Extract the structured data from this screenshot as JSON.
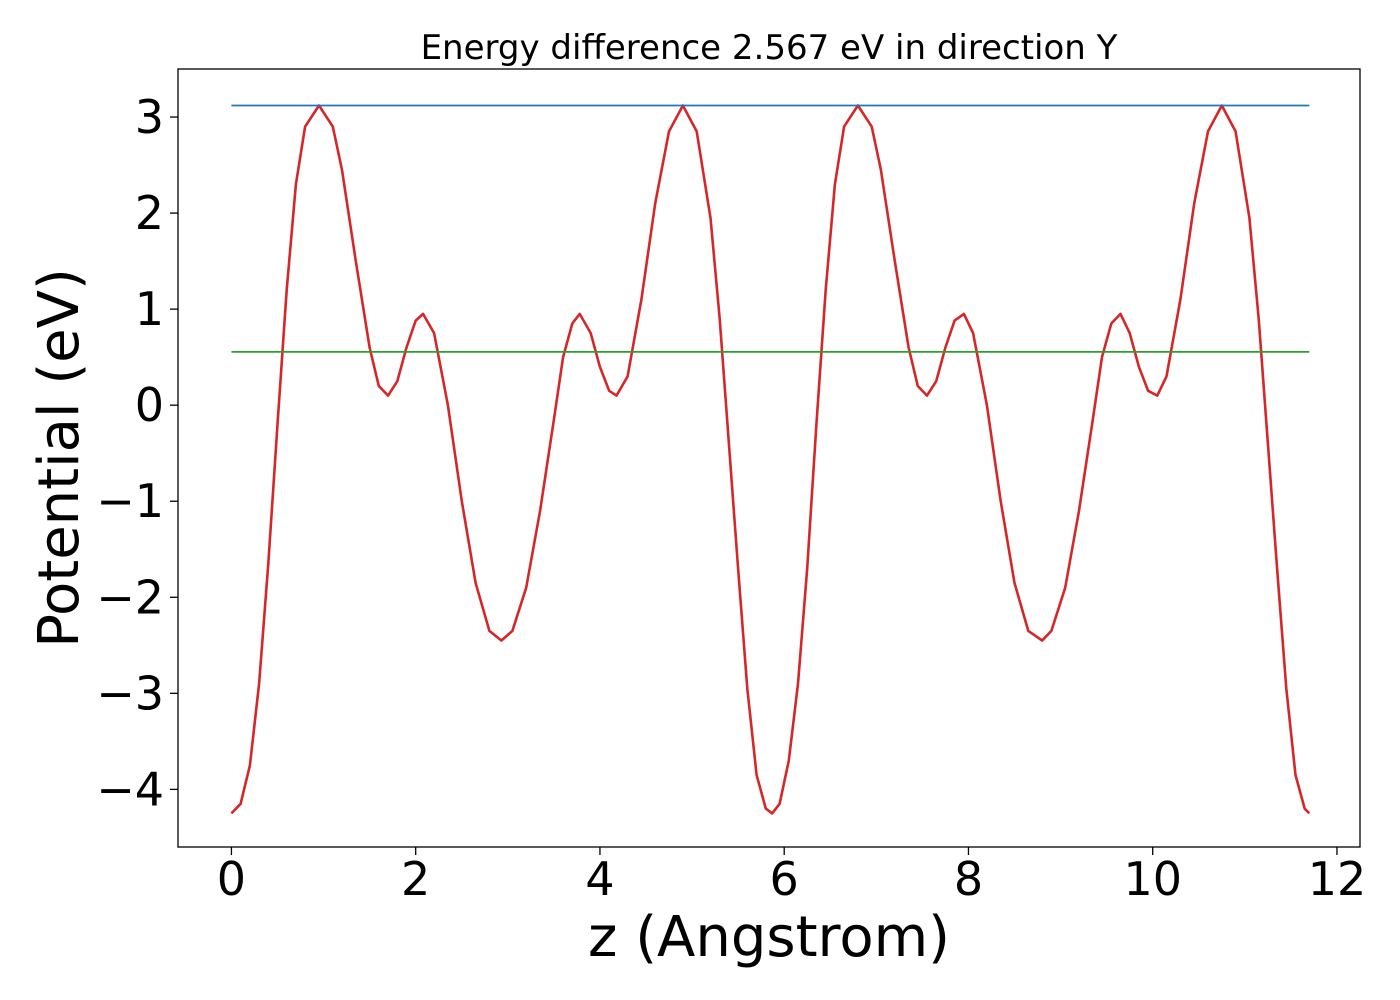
{
  "chart_data": {
    "type": "line",
    "title": "Energy difference 2.567 eV in direction Y",
    "xlabel": "z (Angstrom)",
    "ylabel": "Potential (eV)",
    "xlim": [
      -0.58,
      12.25
    ],
    "ylim": [
      -4.6,
      3.5
    ],
    "x_ticks": [
      0,
      2,
      4,
      6,
      8,
      10,
      12
    ],
    "x_tick_labels": [
      "0",
      "2",
      "4",
      "6",
      "8",
      "10",
      "12"
    ],
    "y_ticks": [
      -4,
      -3,
      -2,
      -1,
      0,
      1,
      2,
      3
    ],
    "y_tick_labels": [
      "−4",
      "−3",
      "−2",
      "−1",
      "0",
      "1",
      "2",
      "3"
    ],
    "grid": false,
    "series": [
      {
        "color": "#d62728",
        "points": [
          [
            0.0,
            -4.25
          ],
          [
            0.1,
            -4.15
          ],
          [
            0.2,
            -3.75
          ],
          [
            0.3,
            -2.9
          ],
          [
            0.4,
            -1.65
          ],
          [
            0.5,
            -0.2
          ],
          [
            0.6,
            1.2
          ],
          [
            0.7,
            2.3
          ],
          [
            0.8,
            2.9
          ],
          [
            0.95,
            3.12
          ],
          [
            1.1,
            2.9
          ],
          [
            1.2,
            2.45
          ],
          [
            1.35,
            1.5
          ],
          [
            1.5,
            0.6
          ],
          [
            1.6,
            0.2
          ],
          [
            1.7,
            0.1
          ],
          [
            1.8,
            0.25
          ],
          [
            1.9,
            0.6
          ],
          [
            2.0,
            0.88
          ],
          [
            2.08,
            0.95
          ],
          [
            2.2,
            0.75
          ],
          [
            2.35,
            0.0
          ],
          [
            2.5,
            -1.0
          ],
          [
            2.65,
            -1.85
          ],
          [
            2.8,
            -2.35
          ],
          [
            2.93,
            -2.45
          ],
          [
            3.05,
            -2.35
          ],
          [
            3.2,
            -1.9
          ],
          [
            3.35,
            -1.1
          ],
          [
            3.5,
            -0.15
          ],
          [
            3.6,
            0.5
          ],
          [
            3.7,
            0.85
          ],
          [
            3.78,
            0.95
          ],
          [
            3.9,
            0.75
          ],
          [
            4.0,
            0.4
          ],
          [
            4.1,
            0.15
          ],
          [
            4.18,
            0.1
          ],
          [
            4.3,
            0.3
          ],
          [
            4.45,
            1.1
          ],
          [
            4.6,
            2.1
          ],
          [
            4.75,
            2.85
          ],
          [
            4.9,
            3.12
          ],
          [
            5.05,
            2.85
          ],
          [
            5.2,
            1.95
          ],
          [
            5.3,
            0.9
          ],
          [
            5.4,
            -0.4
          ],
          [
            5.5,
            -1.7
          ],
          [
            5.6,
            -2.95
          ],
          [
            5.7,
            -3.85
          ],
          [
            5.8,
            -4.2
          ],
          [
            5.87,
            -4.25
          ],
          [
            5.95,
            -4.15
          ],
          [
            6.05,
            -3.7
          ],
          [
            6.15,
            -2.9
          ],
          [
            6.25,
            -1.7
          ],
          [
            6.35,
            -0.2
          ],
          [
            6.45,
            1.2
          ],
          [
            6.55,
            2.3
          ],
          [
            6.65,
            2.9
          ],
          [
            6.8,
            3.12
          ],
          [
            6.95,
            2.9
          ],
          [
            7.05,
            2.45
          ],
          [
            7.2,
            1.5
          ],
          [
            7.35,
            0.6
          ],
          [
            7.45,
            0.2
          ],
          [
            7.55,
            0.1
          ],
          [
            7.65,
            0.25
          ],
          [
            7.75,
            0.6
          ],
          [
            7.85,
            0.88
          ],
          [
            7.95,
            0.95
          ],
          [
            8.05,
            0.75
          ],
          [
            8.2,
            0.0
          ],
          [
            8.35,
            -1.0
          ],
          [
            8.5,
            -1.85
          ],
          [
            8.65,
            -2.35
          ],
          [
            8.8,
            -2.45
          ],
          [
            8.9,
            -2.35
          ],
          [
            9.05,
            -1.9
          ],
          [
            9.2,
            -1.1
          ],
          [
            9.35,
            -0.15
          ],
          [
            9.45,
            0.5
          ],
          [
            9.55,
            0.85
          ],
          [
            9.65,
            0.95
          ],
          [
            9.75,
            0.75
          ],
          [
            9.85,
            0.4
          ],
          [
            9.95,
            0.15
          ],
          [
            10.05,
            0.1
          ],
          [
            10.15,
            0.3
          ],
          [
            10.3,
            1.1
          ],
          [
            10.45,
            2.1
          ],
          [
            10.6,
            2.85
          ],
          [
            10.75,
            3.12
          ],
          [
            10.9,
            2.85
          ],
          [
            11.05,
            1.95
          ],
          [
            11.15,
            0.9
          ],
          [
            11.25,
            -0.4
          ],
          [
            11.35,
            -1.7
          ],
          [
            11.45,
            -2.95
          ],
          [
            11.55,
            -3.85
          ],
          [
            11.65,
            -4.2
          ],
          [
            11.7,
            -4.25
          ]
        ]
      },
      {
        "color": "#1f77b4",
        "points": [
          [
            0.0,
            3.12
          ],
          [
            11.7,
            3.12
          ]
        ]
      },
      {
        "color": "#2ca02c",
        "points": [
          [
            0.0,
            0.555
          ],
          [
            11.7,
            0.555
          ]
        ]
      }
    ]
  }
}
